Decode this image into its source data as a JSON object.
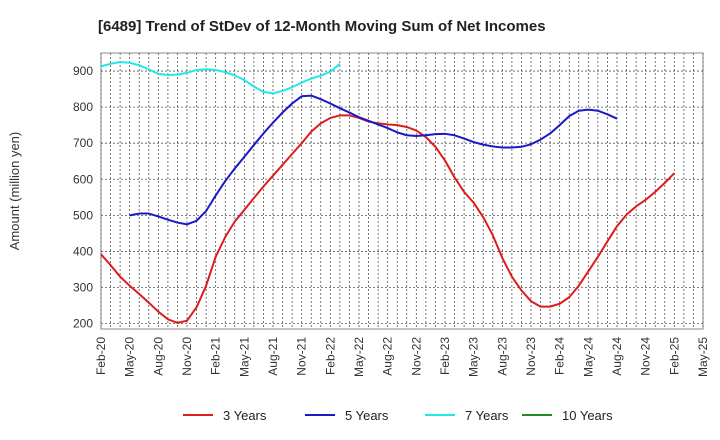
{
  "chart_data": {
    "type": "line",
    "title": "[6489]  Trend of StDev of 12-Month Moving Sum of Net Incomes",
    "xlabel": "",
    "ylabel": "Amount (million yen)",
    "ylim": [
      185,
      950
    ],
    "y_ticks": [
      200,
      300,
      400,
      500,
      600,
      700,
      800,
      900
    ],
    "x_tick_labels": [
      "Feb-20",
      "May-20",
      "Aug-20",
      "Nov-20",
      "Feb-21",
      "May-21",
      "Aug-21",
      "Nov-21",
      "Feb-22",
      "May-22",
      "Aug-22",
      "Nov-22",
      "Feb-23",
      "May-23",
      "Aug-23",
      "Nov-23",
      "Feb-24",
      "May-24",
      "Aug-24",
      "Nov-24",
      "Feb-25",
      "May-25"
    ],
    "grid": true,
    "legend_position": "bottom",
    "series": [
      {
        "name": "3 Years",
        "color": "#dd1c1c",
        "points": [
          [
            0,
            392
          ],
          [
            1,
            362
          ],
          [
            2,
            330
          ],
          [
            3,
            305
          ],
          [
            4,
            282
          ],
          [
            5,
            258
          ],
          [
            6,
            233
          ],
          [
            7,
            212
          ],
          [
            8,
            202
          ],
          [
            9,
            208
          ],
          [
            10,
            245
          ],
          [
            11,
            305
          ],
          [
            12,
            385
          ],
          [
            13,
            440
          ],
          [
            14,
            483
          ],
          [
            15,
            515
          ],
          [
            16,
            548
          ],
          [
            17,
            580
          ],
          [
            18,
            610
          ],
          [
            19,
            640
          ],
          [
            20,
            670
          ],
          [
            21,
            700
          ],
          [
            22,
            732
          ],
          [
            23,
            755
          ],
          [
            24,
            770
          ],
          [
            25,
            777
          ],
          [
            26,
            777
          ],
          [
            27,
            770
          ],
          [
            28,
            760
          ],
          [
            29,
            755
          ],
          [
            30,
            752
          ],
          [
            31,
            750
          ],
          [
            32,
            745
          ],
          [
            33,
            735
          ],
          [
            34,
            717
          ],
          [
            35,
            690
          ],
          [
            36,
            652
          ],
          [
            37,
            605
          ],
          [
            38,
            565
          ],
          [
            39,
            535
          ],
          [
            40,
            495
          ],
          [
            41,
            445
          ],
          [
            42,
            382
          ],
          [
            43,
            330
          ],
          [
            44,
            292
          ],
          [
            45,
            262
          ],
          [
            46,
            247
          ],
          [
            47,
            247
          ],
          [
            48,
            255
          ],
          [
            49,
            273
          ],
          [
            50,
            305
          ],
          [
            51,
            345
          ],
          [
            52,
            385
          ],
          [
            53,
            428
          ],
          [
            54,
            470
          ],
          [
            55,
            502
          ],
          [
            56,
            525
          ],
          [
            57,
            543
          ],
          [
            58,
            565
          ],
          [
            59,
            590
          ],
          [
            60,
            617
          ]
        ]
      },
      {
        "name": "5 Years",
        "color": "#1919c8",
        "points": [
          [
            3,
            500
          ],
          [
            4,
            505
          ],
          [
            5,
            505
          ],
          [
            6,
            497
          ],
          [
            7,
            488
          ],
          [
            8,
            480
          ],
          [
            9,
            475
          ],
          [
            10,
            485
          ],
          [
            11,
            512
          ],
          [
            12,
            555
          ],
          [
            13,
            595
          ],
          [
            14,
            630
          ],
          [
            15,
            662
          ],
          [
            16,
            695
          ],
          [
            17,
            727
          ],
          [
            18,
            757
          ],
          [
            19,
            785
          ],
          [
            20,
            810
          ],
          [
            21,
            830
          ],
          [
            22,
            832
          ],
          [
            23,
            822
          ],
          [
            24,
            810
          ],
          [
            25,
            797
          ],
          [
            26,
            785
          ],
          [
            27,
            772
          ],
          [
            28,
            762
          ],
          [
            29,
            752
          ],
          [
            30,
            742
          ],
          [
            31,
            730
          ],
          [
            32,
            722
          ],
          [
            33,
            720
          ],
          [
            34,
            722
          ],
          [
            35,
            725
          ],
          [
            36,
            726
          ],
          [
            37,
            722
          ],
          [
            38,
            713
          ],
          [
            39,
            703
          ],
          [
            40,
            696
          ],
          [
            41,
            691
          ],
          [
            42,
            688
          ],
          [
            43,
            688
          ],
          [
            44,
            690
          ],
          [
            45,
            697
          ],
          [
            46,
            710
          ],
          [
            47,
            727
          ],
          [
            48,
            750
          ],
          [
            49,
            775
          ],
          [
            50,
            790
          ],
          [
            51,
            793
          ],
          [
            52,
            790
          ],
          [
            53,
            780
          ],
          [
            54,
            768
          ]
        ]
      },
      {
        "name": "7 Years",
        "color": "#22e8e8",
        "points": [
          [
            0,
            913
          ],
          [
            1,
            920
          ],
          [
            2,
            925
          ],
          [
            3,
            923
          ],
          [
            4,
            916
          ],
          [
            5,
            905
          ],
          [
            6,
            892
          ],
          [
            7,
            889
          ],
          [
            8,
            890
          ],
          [
            9,
            895
          ],
          [
            10,
            903
          ],
          [
            11,
            905
          ],
          [
            12,
            903
          ],
          [
            13,
            897
          ],
          [
            14,
            888
          ],
          [
            15,
            875
          ],
          [
            16,
            857
          ],
          [
            17,
            842
          ],
          [
            18,
            838
          ],
          [
            19,
            845
          ],
          [
            20,
            855
          ],
          [
            21,
            868
          ],
          [
            22,
            879
          ],
          [
            23,
            887
          ],
          [
            24,
            898
          ],
          [
            25,
            920
          ]
        ]
      },
      {
        "name": "10 Years",
        "color": "#1e8c1e",
        "points": []
      }
    ]
  }
}
